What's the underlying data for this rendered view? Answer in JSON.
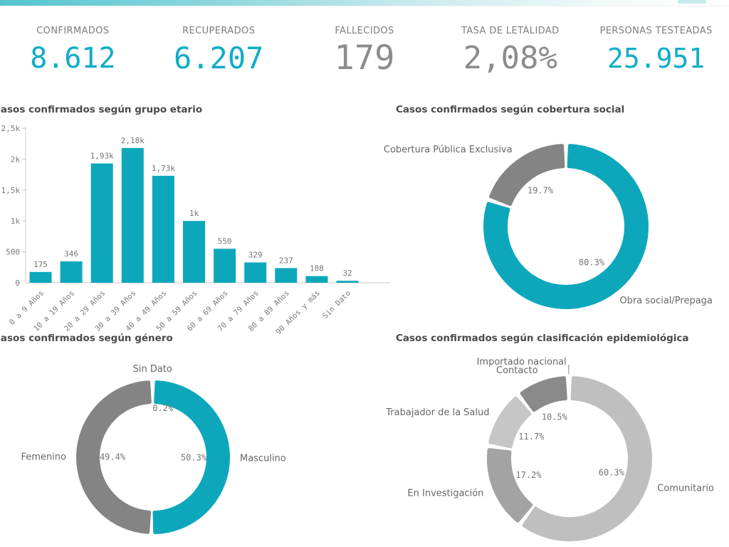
{
  "kpis": [
    {
      "label": "CONFIRMADOS",
      "value": "8.612",
      "color": "#0fadc8"
    },
    {
      "label": "RECUPERADOS",
      "value": "6.207",
      "color": "#0fadc8"
    },
    {
      "label": "FALLECIDOS",
      "value": "179",
      "color": "#8c8c8c"
    },
    {
      "label": "TASA DE LETALIDAD",
      "value": "2,08%",
      "color": "#8c8c8c"
    },
    {
      "label": "PERSONAS TESTEADAS",
      "value": "25.951",
      "color": "#0fadc8"
    }
  ],
  "colors": {
    "teal": "#0da7bc",
    "gray": "#848484",
    "axis": "#c9c9c9",
    "leader": "#8a8a8a"
  },
  "chart_data": [
    {
      "id": "grupo_etario",
      "type": "bar",
      "title": "Casos confirmados según grupo etario",
      "categories": [
        "0 a 9 Años",
        "10 a 19 Años",
        "20 a 29 Años",
        "30 a 39 Años",
        "40 a 49 Años",
        "50 a 59 Años",
        "60 a 69 Años",
        "70 a 79 Años",
        "80 a 89 Años",
        "90 Años y más",
        "Sin Dato"
      ],
      "values": [
        175,
        346,
        1930,
        2180,
        1730,
        1000,
        550,
        329,
        237,
        108,
        32
      ],
      "value_labels": [
        "175",
        "346",
        "1,93k",
        "2,18k",
        "1,73k",
        "1k",
        "550",
        "329",
        "237",
        "108",
        "32"
      ],
      "ylim": [
        0,
        2500
      ],
      "yticks": [
        {
          "v": 0,
          "label": "0"
        },
        {
          "v": 500,
          "label": "500"
        },
        {
          "v": 1000,
          "label": "1k"
        },
        {
          "v": 1500,
          "label": "1,5k"
        },
        {
          "v": 2000,
          "label": "2k"
        },
        {
          "v": 2500,
          "label": "2,5k"
        }
      ],
      "bar_color": "#0da7bc",
      "grid": false,
      "legend": false
    },
    {
      "id": "cobertura_social",
      "type": "donut",
      "title": "Casos confirmados según cobertura social",
      "slices": [
        {
          "name": "Obra social/Prepaga",
          "value": 80.3,
          "pct_label": "80.3%",
          "color": "#0da7bc"
        },
        {
          "name": "Cobertura Pública Exclusiva",
          "value": 19.7,
          "pct_label": "19.7%",
          "color": "#848484"
        }
      ],
      "legend": false
    },
    {
      "id": "genero",
      "type": "donut",
      "title": "Casos confirmados según género",
      "slices": [
        {
          "name": "Masculino",
          "value": 50.3,
          "pct_label": "50.3%",
          "color": "#0da7bc"
        },
        {
          "name": "Femenino",
          "value": 49.4,
          "pct_label": "49.4%",
          "color": "#848484"
        },
        {
          "name": "Sin Dato",
          "value": 0.2,
          "pct_label": "0.2%",
          "color": "#b5b5b5"
        }
      ],
      "legend": false
    },
    {
      "id": "clasificacion_epidemiologica",
      "type": "donut",
      "title": "Casos confirmados según clasificación epidemiológica",
      "slices": [
        {
          "name": "Comunitario",
          "value": 60.3,
          "pct_label": "60.3%",
          "color": "#bfbfbf"
        },
        {
          "name": "En Investigación",
          "value": 17.2,
          "pct_label": "17.2%",
          "color": "#a3a3a3"
        },
        {
          "name": "Trabajador de la Salud",
          "value": 11.7,
          "pct_label": "11.7%",
          "color": "#c6c6c6"
        },
        {
          "name": "Contacto",
          "value": 10.5,
          "pct_label": "10.5%",
          "color": "#8a8a8a"
        },
        {
          "name": "Importado nacional",
          "value": 0.3,
          "pct_label": "",
          "color": "#d9d9d9"
        }
      ],
      "legend": false
    }
  ]
}
